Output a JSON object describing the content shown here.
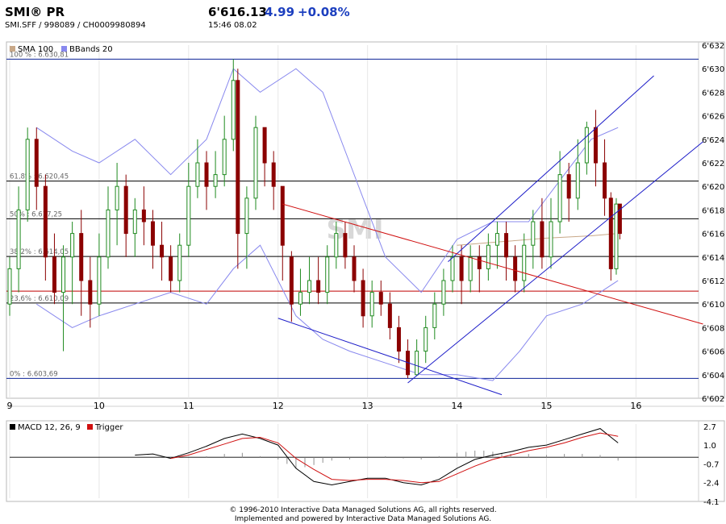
{
  "header": {
    "symbol": "SMI® PR",
    "ids": "SMI.SFF   /   998089   /   CH0009980894",
    "last": "6'616.13",
    "change": "4.99",
    "percent": "+0.08%",
    "time": "15:46   08.02",
    "colors": {
      "change": "#1c3fbf"
    }
  },
  "footer": {
    "line1": "© 1996-2010 Interactive Data Managed Solutions AG, all rights reserved.",
    "line2": "Implemented and powered by Interactive Data Managed Solutions AG."
  },
  "chart_data": [
    {
      "type": "candlestick",
      "watermark": "SMI",
      "legend": [
        {
          "name": "SMA 100",
          "color": "#c8a888"
        },
        {
          "name": "BBands 20",
          "color": "#8888ee"
        }
      ],
      "x_ticks": [
        "9",
        "10",
        "11",
        "12",
        "13",
        "14",
        "15",
        "16"
      ],
      "y_ticks": [
        "6'632",
        "6'630",
        "6'628",
        "6'626",
        "6'624",
        "6'622",
        "6'620",
        "6'618",
        "6'616",
        "6'614",
        "6'612",
        "6'610",
        "6'608",
        "6'606",
        "6'604",
        "6'602"
      ],
      "ylim": [
        6602,
        6632
      ],
      "xlim": [
        9,
        16.7
      ],
      "fibonacci": [
        {
          "label": "100 % : 6.630,81",
          "value": 6630.81,
          "color": "#0b2396"
        },
        {
          "label": "61,8% : 6.620,45",
          "value": 6620.45,
          "color": "#000000"
        },
        {
          "label": "50% : 6.617,25",
          "value": 6617.25,
          "color": "#000000"
        },
        {
          "label": "38,2% : 6.614,05",
          "value": 6614.05,
          "color": "#000000"
        },
        {
          "label": "23,6% : 6.610,09",
          "value": 6610.09,
          "color": "#000000"
        },
        {
          "label": "0% : 6.603,69",
          "value": 6603.69,
          "color": "#0b2396"
        }
      ],
      "extra_hline": {
        "value": 6611.1,
        "color": "#c00000"
      },
      "trendlines": [
        {
          "color": "#1c1cc8",
          "points": [
            [
              12.0,
              6608.8
            ],
            [
              14.5,
              6602.3
            ]
          ]
        },
        {
          "color": "#1c1cc8",
          "points": [
            [
              13.45,
              6603.3
            ],
            [
              16.75,
              6623.8
            ]
          ]
        },
        {
          "color": "#1c1cc8",
          "points": [
            [
              13.9,
              6613.6
            ],
            [
              16.2,
              6629.4
            ]
          ]
        },
        {
          "color": "#d01010",
          "points": [
            [
              12.05,
              6618.5
            ],
            [
              16.75,
              6608.3
            ]
          ]
        }
      ],
      "candles": [
        [
          9.0,
          6610.0,
          6613.0,
          6609.0,
          6614.0
        ],
        [
          9.1,
          6613.0,
          6618.0,
          6611.0,
          6620.0
        ],
        [
          9.2,
          6618.0,
          6624.0,
          6617.0,
          6625.0
        ],
        [
          9.3,
          6624.0,
          6620.0,
          6618.0,
          6625.0
        ],
        [
          9.4,
          6620.0,
          6614.0,
          6612.0,
          6621.0
        ],
        [
          9.5,
          6614.0,
          6611.0,
          6610.0,
          6616.0
        ],
        [
          9.6,
          6611.0,
          6614.0,
          6606.0,
          6615.0
        ],
        [
          9.7,
          6614.0,
          6616.0,
          6610.0,
          6617.0
        ],
        [
          9.8,
          6616.0,
          6612.0,
          6609.0,
          6618.0
        ],
        [
          9.9,
          6612.0,
          6610.0,
          6608.0,
          6614.0
        ],
        [
          10.0,
          6610.0,
          6614.0,
          6609.0,
          6616.0
        ],
        [
          10.1,
          6614.0,
          6618.0,
          6613.0,
          6620.0
        ],
        [
          10.2,
          6618.0,
          6620.0,
          6615.0,
          6622.0
        ],
        [
          10.3,
          6620.0,
          6616.0,
          6614.0,
          6621.0
        ],
        [
          10.4,
          6616.0,
          6618.0,
          6614.0,
          6619.0
        ],
        [
          10.5,
          6618.0,
          6617.0,
          6615.0,
          6620.0
        ],
        [
          10.6,
          6617.0,
          6615.0,
          6613.0,
          6618.0
        ],
        [
          10.7,
          6615.0,
          6614.0,
          6612.0,
          6617.0
        ],
        [
          10.8,
          6614.0,
          6612.0,
          6611.0,
          6615.0
        ],
        [
          10.9,
          6612.0,
          6615.0,
          6611.0,
          6616.0
        ],
        [
          11.0,
          6615.0,
          6620.0,
          6614.0,
          6622.0
        ],
        [
          11.1,
          6620.0,
          6622.0,
          6619.0,
          6624.0
        ],
        [
          11.2,
          6622.0,
          6620.0,
          6618.0,
          6623.0
        ],
        [
          11.3,
          6620.0,
          6621.0,
          6619.0,
          6623.0
        ],
        [
          11.4,
          6621.0,
          6624.0,
          6620.0,
          6626.0
        ],
        [
          11.5,
          6624.0,
          6629.0,
          6623.0,
          6630.8
        ],
        [
          11.55,
          6629.0,
          6616.0,
          6613.0,
          6630.0
        ],
        [
          11.65,
          6616.0,
          6619.0,
          6613.0,
          6620.0
        ],
        [
          11.75,
          6619.0,
          6625.0,
          6618.0,
          6626.0
        ],
        [
          11.85,
          6625.0,
          6622.0,
          6620.0,
          6625.0
        ],
        [
          11.95,
          6622.0,
          6620.0,
          6618.0,
          6623.0
        ],
        [
          12.05,
          6620.0,
          6615.0,
          6612.0,
          6620.0
        ],
        [
          12.15,
          6614.0,
          6610.0,
          6608.5,
          6614.5
        ],
        [
          12.25,
          6610.0,
          6611.0,
          6609.0,
          6613.0
        ],
        [
          12.35,
          6611.0,
          6612.0,
          6610.0,
          6614.0
        ],
        [
          12.45,
          6612.0,
          6611.0,
          6610.0,
          6614.0
        ],
        [
          12.55,
          6611.0,
          6614.0,
          6610.0,
          6615.0
        ],
        [
          12.65,
          6614.0,
          6616.0,
          6613.0,
          6617.0
        ],
        [
          12.75,
          6616.0,
          6614.0,
          6613.0,
          6617.0
        ],
        [
          12.85,
          6614.0,
          6612.0,
          6611.0,
          6615.0
        ],
        [
          12.95,
          6612.0,
          6609.0,
          6608.0,
          6613.0
        ],
        [
          13.05,
          6609.0,
          6611.0,
          6608.0,
          6612.0
        ],
        [
          13.15,
          6611.0,
          6610.0,
          6609.0,
          6612.0
        ],
        [
          13.25,
          6610.0,
          6608.0,
          6607.0,
          6611.0
        ],
        [
          13.35,
          6608.0,
          6606.0,
          6605.0,
          6609.0
        ],
        [
          13.45,
          6606.0,
          6604.0,
          6603.7,
          6607.0
        ],
        [
          13.55,
          6604.0,
          6606.0,
          6603.9,
          6607.0
        ],
        [
          13.65,
          6606.0,
          6608.0,
          6605.0,
          6609.0
        ],
        [
          13.75,
          6608.0,
          6610.0,
          6607.0,
          6611.0
        ],
        [
          13.85,
          6610.0,
          6612.0,
          6609.0,
          6613.0
        ],
        [
          13.95,
          6612.0,
          6614.0,
          6611.0,
          6615.0
        ],
        [
          14.05,
          6614.0,
          6612.0,
          6610.0,
          6615.0
        ],
        [
          14.15,
          6612.0,
          6614.0,
          6611.0,
          6615.0
        ],
        [
          14.25,
          6614.0,
          6613.0,
          6611.0,
          6615.0
        ],
        [
          14.35,
          6613.0,
          6615.0,
          6612.0,
          6616.0
        ],
        [
          14.45,
          6615.0,
          6616.0,
          6613.0,
          6617.0
        ],
        [
          14.55,
          6616.0,
          6614.0,
          6612.0,
          6617.0
        ],
        [
          14.65,
          6614.0,
          6612.0,
          6611.0,
          6615.0
        ],
        [
          14.75,
          6612.0,
          6615.0,
          6611.0,
          6616.0
        ],
        [
          14.85,
          6615.0,
          6617.0,
          6613.0,
          6618.0
        ],
        [
          14.95,
          6617.0,
          6614.0,
          6613.0,
          6619.0
        ],
        [
          15.05,
          6614.0,
          6617.0,
          6613.0,
          6619.0
        ],
        [
          15.15,
          6617.0,
          6621.0,
          6616.0,
          6623.0
        ],
        [
          15.25,
          6621.0,
          6619.0,
          6617.0,
          6622.0
        ],
        [
          15.35,
          6619.0,
          6622.0,
          6618.0,
          6624.0
        ],
        [
          15.45,
          6622.0,
          6625.0,
          6621.0,
          6625.5
        ],
        [
          15.55,
          6625.0,
          6622.0,
          6620.0,
          6626.5
        ],
        [
          15.65,
          6622.0,
          6619.0,
          6617.5,
          6624.0
        ],
        [
          15.72,
          6619.0,
          6613.0,
          6612.0,
          6619.5
        ],
        [
          15.78,
          6613.0,
          6618.5,
          6612.5,
          6619.0
        ],
        [
          15.82,
          6618.5,
          6616.0,
          6615.5,
          6618.5
        ]
      ],
      "sma100": [
        [
          14.0,
          6615.0
        ],
        [
          14.5,
          6615.3
        ],
        [
          15.0,
          6615.6
        ],
        [
          15.5,
          6615.8
        ],
        [
          15.8,
          6616.0
        ]
      ],
      "bb_upper": [
        [
          9.3,
          6625.0
        ],
        [
          9.7,
          6623.0
        ],
        [
          10.0,
          6622.0
        ],
        [
          10.4,
          6624.0
        ],
        [
          10.8,
          6621.0
        ],
        [
          11.2,
          6624.0
        ],
        [
          11.5,
          6630.0
        ],
        [
          11.8,
          6628.0
        ],
        [
          12.2,
          6630.0
        ],
        [
          12.5,
          6628.0
        ],
        [
          12.8,
          6622.0
        ],
        [
          13.2,
          6614.0
        ],
        [
          13.6,
          6611.0
        ],
        [
          14.0,
          6615.5
        ],
        [
          14.4,
          6617.0
        ],
        [
          14.8,
          6617.0
        ],
        [
          15.2,
          6621.0
        ],
        [
          15.5,
          6624.0
        ],
        [
          15.8,
          6625.0
        ]
      ],
      "bb_lower": [
        [
          9.3,
          6610.0
        ],
        [
          9.7,
          6608.0
        ],
        [
          10.0,
          6609.0
        ],
        [
          10.4,
          6610.0
        ],
        [
          10.8,
          6611.0
        ],
        [
          11.2,
          6610.0
        ],
        [
          11.5,
          6613.0
        ],
        [
          11.8,
          6615.0
        ],
        [
          12.2,
          6609.0
        ],
        [
          12.5,
          6607.0
        ],
        [
          12.8,
          6606.0
        ],
        [
          13.2,
          6605.0
        ],
        [
          13.6,
          6604.0
        ],
        [
          14.0,
          6604.0
        ],
        [
          14.4,
          6603.5
        ],
        [
          14.7,
          6606.0
        ],
        [
          15.0,
          6609.0
        ],
        [
          15.4,
          6610.0
        ],
        [
          15.8,
          6612.0
        ]
      ]
    },
    {
      "type": "line",
      "legend": [
        {
          "name": "MACD 12, 26, 9",
          "color": "#000000"
        },
        {
          "name": "Trigger",
          "color": "#d01010"
        }
      ],
      "y_ticks": [
        "2.7",
        "1.0",
        "-0.7",
        "-2.4",
        "-4.1"
      ],
      "ylim": [
        -4.1,
        3.2
      ],
      "xlim": [
        9,
        16.7
      ],
      "zero_line": -0.1,
      "series": [
        {
          "name": "MACD 12, 26, 9",
          "color": "#000000",
          "points": [
            [
              10.4,
              0.1
            ],
            [
              10.6,
              0.2
            ],
            [
              10.8,
              -0.2
            ],
            [
              11.0,
              0.3
            ],
            [
              11.2,
              0.9
            ],
            [
              11.4,
              1.6
            ],
            [
              11.6,
              2.0
            ],
            [
              11.8,
              1.6
            ],
            [
              12.0,
              1.0
            ],
            [
              12.2,
              -1.1
            ],
            [
              12.4,
              -2.3
            ],
            [
              12.6,
              -2.6
            ],
            [
              12.8,
              -2.3
            ],
            [
              13.0,
              -2.0
            ],
            [
              13.2,
              -2.0
            ],
            [
              13.4,
              -2.4
            ],
            [
              13.6,
              -2.6
            ],
            [
              13.8,
              -2.1
            ],
            [
              14.0,
              -1.1
            ],
            [
              14.2,
              -0.3
            ],
            [
              14.4,
              0.1
            ],
            [
              14.6,
              0.4
            ],
            [
              14.8,
              0.8
            ],
            [
              15.0,
              1.0
            ],
            [
              15.2,
              1.5
            ],
            [
              15.4,
              2.0
            ],
            [
              15.6,
              2.5
            ],
            [
              15.8,
              1.2
            ]
          ]
        },
        {
          "name": "Trigger",
          "color": "#d01010",
          "points": [
            [
              10.8,
              -0.2
            ],
            [
              11.0,
              0.1
            ],
            [
              11.2,
              0.6
            ],
            [
              11.4,
              1.1
            ],
            [
              11.6,
              1.6
            ],
            [
              11.8,
              1.7
            ],
            [
              12.0,
              1.2
            ],
            [
              12.2,
              -0.2
            ],
            [
              12.4,
              -1.2
            ],
            [
              12.6,
              -2.1
            ],
            [
              12.8,
              -2.2
            ],
            [
              13.0,
              -2.1
            ],
            [
              13.2,
              -2.1
            ],
            [
              13.4,
              -2.2
            ],
            [
              13.6,
              -2.4
            ],
            [
              13.8,
              -2.3
            ],
            [
              14.0,
              -1.6
            ],
            [
              14.2,
              -0.9
            ],
            [
              14.4,
              -0.3
            ],
            [
              14.6,
              0.1
            ],
            [
              14.8,
              0.5
            ],
            [
              15.0,
              0.8
            ],
            [
              15.2,
              1.2
            ],
            [
              15.4,
              1.7
            ],
            [
              15.6,
              2.1
            ],
            [
              15.8,
              1.8
            ]
          ]
        }
      ],
      "histogram": [
        [
          11.2,
          0.1
        ],
        [
          11.4,
          0.3
        ],
        [
          11.6,
          0.4
        ],
        [
          11.8,
          0.1
        ],
        [
          12.0,
          -0.2
        ],
        [
          12.1,
          -0.6
        ],
        [
          12.2,
          -1.0
        ],
        [
          12.3,
          -0.9
        ],
        [
          12.4,
          -0.7
        ],
        [
          12.5,
          -0.5
        ],
        [
          12.6,
          -0.3
        ],
        [
          12.8,
          -0.2
        ],
        [
          13.0,
          -0.1
        ],
        [
          13.2,
          0.1
        ],
        [
          13.4,
          -0.1
        ],
        [
          13.6,
          -0.2
        ],
        [
          13.8,
          0.1
        ],
        [
          14.0,
          0.4
        ],
        [
          14.1,
          0.5
        ],
        [
          14.2,
          0.6
        ],
        [
          14.3,
          0.6
        ],
        [
          14.4,
          0.5
        ],
        [
          14.5,
          0.4
        ],
        [
          14.6,
          0.3
        ],
        [
          14.8,
          0.3
        ],
        [
          15.0,
          0.2
        ],
        [
          15.2,
          0.3
        ],
        [
          15.4,
          0.3
        ],
        [
          15.6,
          0.2
        ],
        [
          15.8,
          -0.3
        ]
      ]
    }
  ]
}
